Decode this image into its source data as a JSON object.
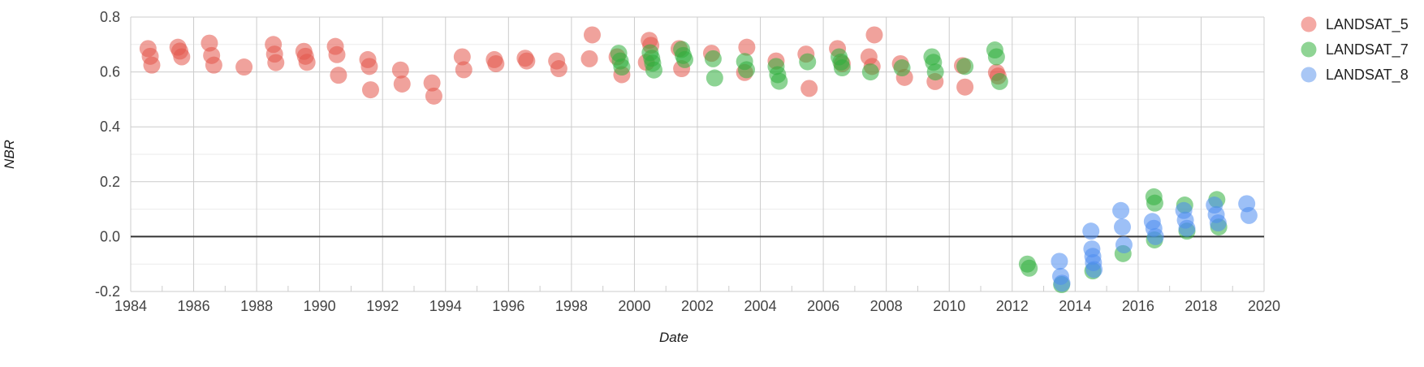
{
  "chart_data": {
    "type": "scatter",
    "title": "",
    "xlabel": "Date",
    "ylabel": "NBR",
    "xlim": [
      1984,
      2020
    ],
    "ylim": [
      -0.2,
      0.8
    ],
    "grid": true,
    "legend_position": "right",
    "background": "#ffffff",
    "zero_line_color": "#333333",
    "major_grid_color": "#cccccc",
    "minor_grid_color": "#ebebeb",
    "marker": {
      "radius": 10.5,
      "opacity": 0.55
    },
    "x_ticks": [
      {
        "value": 1984,
        "label": "1984"
      },
      {
        "value": 1986,
        "label": "1986"
      },
      {
        "value": 1988,
        "label": "1988"
      },
      {
        "value": 1990,
        "label": "1990"
      },
      {
        "value": 1992,
        "label": "1992"
      },
      {
        "value": 1994,
        "label": "1994"
      },
      {
        "value": 1996,
        "label": "1996"
      },
      {
        "value": 1998,
        "label": "1998"
      },
      {
        "value": 2000,
        "label": "2000"
      },
      {
        "value": 2002,
        "label": "2002"
      },
      {
        "value": 2004,
        "label": "2004"
      },
      {
        "value": 2006,
        "label": "2006"
      },
      {
        "value": 2008,
        "label": "2008"
      },
      {
        "value": 2010,
        "label": "2010"
      },
      {
        "value": 2012,
        "label": "2012"
      },
      {
        "value": 2014,
        "label": "2014"
      },
      {
        "value": 2016,
        "label": "2016"
      },
      {
        "value": 2018,
        "label": "2018"
      },
      {
        "value": 2020,
        "label": "2020"
      }
    ],
    "x_minor_ticks": [
      1985,
      1987,
      1989,
      1991,
      1993,
      1995,
      1997,
      1999,
      2001,
      2003,
      2005,
      2007,
      2009,
      2011,
      2013,
      2015,
      2017,
      2019
    ],
    "y_ticks": [
      {
        "value": 0.8,
        "label": "0.8"
      },
      {
        "value": 0.6,
        "label": "0.6"
      },
      {
        "value": 0.4,
        "label": "0.4"
      },
      {
        "value": 0.2,
        "label": "0.2"
      },
      {
        "value": 0.0,
        "label": "0.0"
      },
      {
        "value": -0.2,
        "label": "-0.2"
      }
    ],
    "y_minor_ticks": [
      0.7,
      0.5,
      0.3,
      0.1,
      -0.1
    ],
    "series": [
      {
        "name": "LANDSAT_5",
        "color": "#E4564B",
        "legend_color": "#F4A9A4",
        "points": [
          [
            1984.55,
            0.685
          ],
          [
            1984.62,
            0.657
          ],
          [
            1984.67,
            0.625
          ],
          [
            1985.5,
            0.69
          ],
          [
            1985.56,
            0.676
          ],
          [
            1985.62,
            0.655
          ],
          [
            1986.5,
            0.705
          ],
          [
            1986.57,
            0.66
          ],
          [
            1986.64,
            0.625
          ],
          [
            1987.6,
            0.618
          ],
          [
            1988.53,
            0.7
          ],
          [
            1988.57,
            0.665
          ],
          [
            1988.61,
            0.634
          ],
          [
            1989.5,
            0.675
          ],
          [
            1989.55,
            0.657
          ],
          [
            1989.6,
            0.635
          ],
          [
            1990.5,
            0.693
          ],
          [
            1990.55,
            0.663
          ],
          [
            1990.6,
            0.588
          ],
          [
            1991.53,
            0.645
          ],
          [
            1991.58,
            0.62
          ],
          [
            1991.62,
            0.535
          ],
          [
            1992.57,
            0.607
          ],
          [
            1992.62,
            0.556
          ],
          [
            1993.57,
            0.56
          ],
          [
            1993.63,
            0.512
          ],
          [
            1994.53,
            0.655
          ],
          [
            1994.58,
            0.608
          ],
          [
            1995.55,
            0.645
          ],
          [
            1995.6,
            0.63
          ],
          [
            1996.53,
            0.65
          ],
          [
            1996.58,
            0.64
          ],
          [
            1997.53,
            0.64
          ],
          [
            1997.6,
            0.612
          ],
          [
            1998.57,
            0.648
          ],
          [
            1998.66,
            0.735
          ],
          [
            1999.45,
            0.655
          ],
          [
            1999.6,
            0.59
          ],
          [
            2000.38,
            0.635
          ],
          [
            2000.47,
            0.715
          ],
          [
            2000.52,
            0.697
          ],
          [
            2001.42,
            0.685
          ],
          [
            2001.5,
            0.612
          ],
          [
            2002.45,
            0.668
          ],
          [
            2003.5,
            0.598
          ],
          [
            2003.57,
            0.69
          ],
          [
            2004.5,
            0.64
          ],
          [
            2005.45,
            0.665
          ],
          [
            2005.55,
            0.54
          ],
          [
            2006.45,
            0.685
          ],
          [
            2006.6,
            0.63
          ],
          [
            2007.45,
            0.655
          ],
          [
            2007.55,
            0.62
          ],
          [
            2007.62,
            0.735
          ],
          [
            2008.45,
            0.63
          ],
          [
            2008.58,
            0.58
          ],
          [
            2009.55,
            0.565
          ],
          [
            2010.42,
            0.623
          ],
          [
            2010.5,
            0.545
          ],
          [
            2011.5,
            0.598
          ],
          [
            2011.55,
            0.585
          ]
        ]
      },
      {
        "name": "LANDSAT_7",
        "color": "#2FAF3D",
        "legend_color": "#8FD494",
        "points": [
          [
            1999.5,
            0.668
          ],
          [
            1999.55,
            0.64
          ],
          [
            1999.6,
            0.618
          ],
          [
            2000.5,
            0.67
          ],
          [
            2000.55,
            0.65
          ],
          [
            2000.58,
            0.632
          ],
          [
            2000.62,
            0.607
          ],
          [
            2001.5,
            0.682
          ],
          [
            2001.55,
            0.66
          ],
          [
            2001.6,
            0.645
          ],
          [
            2002.5,
            0.648
          ],
          [
            2002.55,
            0.578
          ],
          [
            2003.5,
            0.638
          ],
          [
            2003.56,
            0.608
          ],
          [
            2004.5,
            0.62
          ],
          [
            2004.55,
            0.59
          ],
          [
            2004.6,
            0.566
          ],
          [
            2005.5,
            0.637
          ],
          [
            2006.5,
            0.655
          ],
          [
            2006.56,
            0.636
          ],
          [
            2006.6,
            0.615
          ],
          [
            2007.5,
            0.6
          ],
          [
            2008.5,
            0.615
          ],
          [
            2009.45,
            0.655
          ],
          [
            2009.5,
            0.635
          ],
          [
            2009.56,
            0.6
          ],
          [
            2010.5,
            0.62
          ],
          [
            2011.45,
            0.68
          ],
          [
            2011.5,
            0.655
          ],
          [
            2011.6,
            0.565
          ],
          [
            2012.48,
            -0.1
          ],
          [
            2012.54,
            -0.115
          ],
          [
            2013.57,
            -0.175
          ],
          [
            2014.56,
            -0.125
          ],
          [
            2015.52,
            -0.062
          ],
          [
            2016.5,
            0.145
          ],
          [
            2016.53,
            0.122
          ],
          [
            2016.52,
            -0.012
          ],
          [
            2017.48,
            0.115
          ],
          [
            2017.55,
            0.02
          ],
          [
            2018.5,
            0.135
          ],
          [
            2018.56,
            0.035
          ]
        ]
      },
      {
        "name": "LANDSAT_8",
        "color": "#4D8CF0",
        "legend_color": "#A9C7F5",
        "points": [
          [
            2013.5,
            -0.09
          ],
          [
            2013.54,
            -0.145
          ],
          [
            2013.58,
            -0.17
          ],
          [
            2014.5,
            0.02
          ],
          [
            2014.53,
            -0.045
          ],
          [
            2014.56,
            -0.072
          ],
          [
            2014.58,
            -0.095
          ],
          [
            2014.6,
            -0.12
          ],
          [
            2015.45,
            0.095
          ],
          [
            2015.5,
            0.035
          ],
          [
            2015.55,
            -0.03
          ],
          [
            2016.45,
            0.055
          ],
          [
            2016.5,
            0.03
          ],
          [
            2016.55,
            0.0
          ],
          [
            2017.45,
            0.095
          ],
          [
            2017.5,
            0.06
          ],
          [
            2017.55,
            0.03
          ],
          [
            2018.42,
            0.115
          ],
          [
            2018.48,
            0.08
          ],
          [
            2018.54,
            0.05
          ],
          [
            2019.45,
            0.12
          ],
          [
            2019.52,
            0.077
          ]
        ]
      }
    ]
  }
}
